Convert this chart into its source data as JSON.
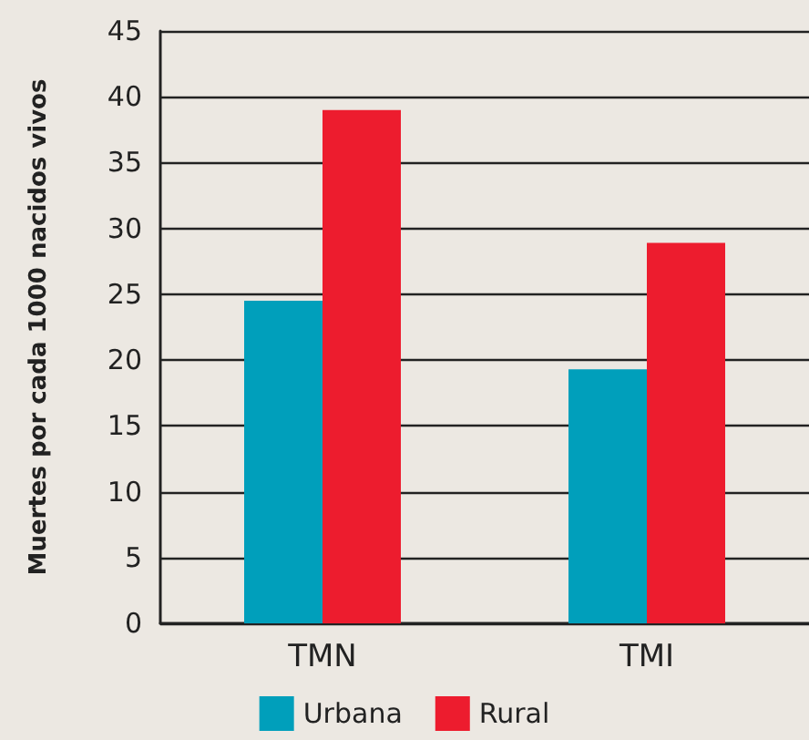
{
  "chart_data": {
    "type": "bar",
    "ylabel": "Muertes por cada 1000 nacidos vivos",
    "categories": [
      "TMN",
      "TMI"
    ],
    "series": [
      {
        "name": "Urbana",
        "color": "#009fbb",
        "values": [
          24.5,
          19.3
        ]
      },
      {
        "name": "Rural",
        "color": "#ed1c2e",
        "values": [
          39,
          28.9
        ]
      }
    ],
    "ylim": [
      0,
      45
    ],
    "yticks": [
      0,
      5,
      10,
      15,
      20,
      25,
      30,
      35,
      40,
      45
    ],
    "grid": "y",
    "legend": "bottom"
  }
}
